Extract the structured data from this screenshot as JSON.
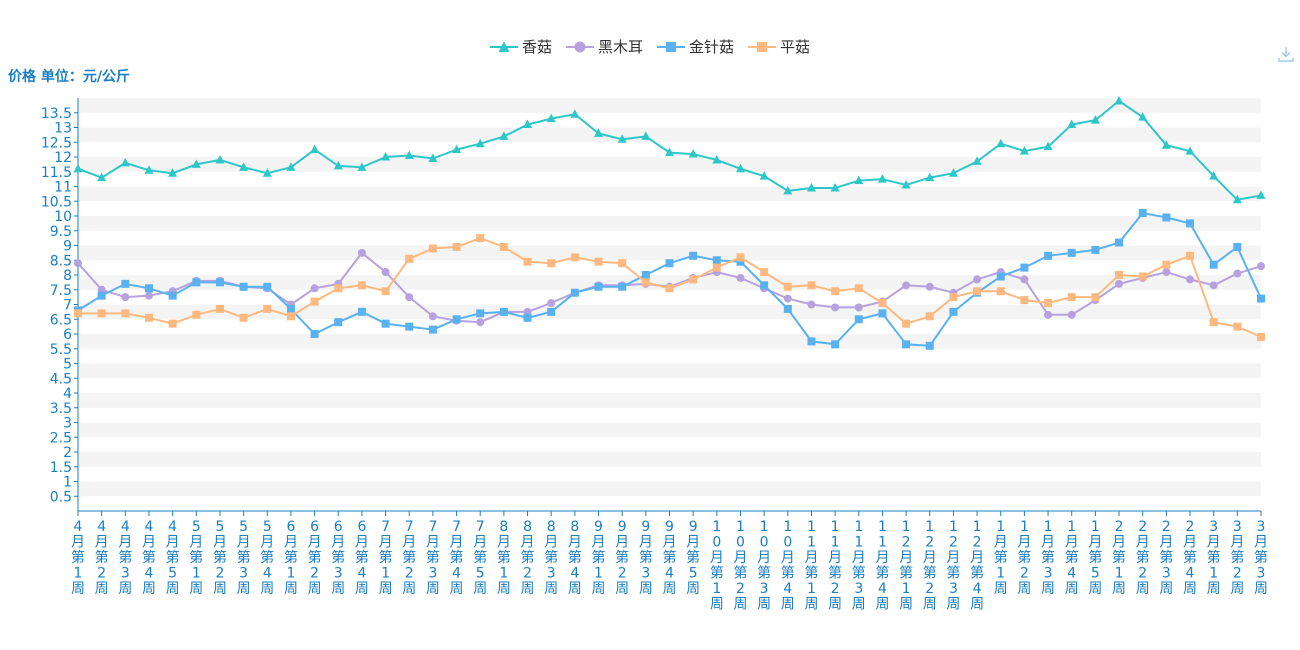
{
  "unit_label": "价格 单位：元/公斤",
  "icons": {
    "download": "download-icon"
  },
  "colors": {
    "axis_text": "#1a7fc4",
    "grid_band": "#f4f4f4",
    "axis_line": "#1a7fc4"
  },
  "chart_data": {
    "type": "line",
    "title": "",
    "ylabel": "价格 单位：元/公斤",
    "ylim": [
      0,
      14
    ],
    "y_ticks": [
      "0.5",
      "1",
      "1.5",
      "2",
      "2.5",
      "3",
      "3.5",
      "4",
      "4.5",
      "5",
      "5.5",
      "6",
      "6.5",
      "7",
      "7.5",
      "8",
      "8.5",
      "9",
      "9.5",
      "10",
      "10.5",
      "11",
      "11.5",
      "12",
      "12.5",
      "13",
      "13.5"
    ],
    "grid": true,
    "legend_position": "top-center",
    "categories": [
      "4月第1周",
      "4月第2周",
      "4月第3周",
      "4月第4周",
      "4月第5周",
      "5月第1周",
      "5月第2周",
      "5月第3周",
      "5月第4周",
      "6月第1周",
      "6月第2周",
      "6月第3周",
      "6月第4周",
      "7月第1周",
      "7月第2周",
      "7月第3周",
      "7月第4周",
      "7月第5周",
      "8月第1周",
      "8月第2周",
      "8月第3周",
      "8月第4周",
      "9月第1周",
      "9月第2周",
      "9月第3周",
      "9月第4周",
      "9月第5周",
      "10月第1周",
      "10月第2周",
      "10月第3周",
      "10月第4周",
      "11月第1周",
      "11月第2周",
      "11月第3周",
      "11月第4周",
      "12月第1周",
      "12月第2周",
      "12月第3周",
      "12月第4周",
      "1月第1周",
      "1月第2周",
      "1月第3周",
      "1月第4周",
      "1月第5周",
      "2月第1周",
      "2月第2周",
      "2月第3周",
      "2月第4周",
      "3月第1周",
      "3月第2周",
      "3月第3周"
    ],
    "series": [
      {
        "name": "香菇",
        "color": "#2ec7c9",
        "marker": "triangle",
        "values": [
          11.6,
          11.3,
          11.8,
          11.55,
          11.45,
          11.75,
          11.9,
          11.65,
          11.45,
          11.65,
          12.25,
          11.7,
          11.65,
          12.0,
          12.05,
          11.95,
          12.25,
          12.45,
          12.7,
          13.1,
          13.3,
          13.45,
          12.8,
          12.6,
          12.7,
          12.15,
          12.1,
          11.9,
          11.6,
          11.35,
          10.85,
          10.95,
          10.95,
          11.2,
          11.25,
          11.05,
          11.3,
          11.45,
          11.85,
          12.45,
          12.2,
          12.35,
          13.1,
          13.25,
          13.9,
          13.35,
          12.4,
          12.2,
          11.35,
          10.55,
          10.7
        ]
      },
      {
        "name": "黑木耳",
        "color": "#b6a2de",
        "marker": "circle",
        "values": [
          8.4,
          7.5,
          7.25,
          7.3,
          7.45,
          7.8,
          7.8,
          7.6,
          7.55,
          7.0,
          7.55,
          7.7,
          8.75,
          8.1,
          7.25,
          6.6,
          6.45,
          6.4,
          6.75,
          6.75,
          7.05,
          7.4,
          7.65,
          7.65,
          7.7,
          7.6,
          7.9,
          8.1,
          7.9,
          7.55,
          7.2,
          7.0,
          6.9,
          6.9,
          7.1,
          7.65,
          7.6,
          7.4,
          7.85,
          8.1,
          7.85,
          6.65,
          6.65,
          7.15,
          7.7,
          7.9,
          8.1,
          7.85,
          7.65,
          8.05,
          8.3
        ]
      },
      {
        "name": "金针菇",
        "color": "#5ab1ef",
        "marker": "rect",
        "values": [
          6.8,
          7.3,
          7.7,
          7.55,
          7.3,
          7.75,
          7.75,
          7.6,
          7.6,
          6.85,
          6.0,
          6.4,
          6.75,
          6.35,
          6.25,
          6.15,
          6.5,
          6.7,
          6.75,
          6.55,
          6.75,
          7.4,
          7.6,
          7.6,
          8.0,
          8.4,
          8.65,
          8.5,
          8.45,
          7.65,
          6.85,
          5.75,
          5.65,
          6.5,
          6.7,
          5.65,
          5.6,
          6.75,
          7.4,
          7.95,
          8.25,
          8.65,
          8.75,
          8.85,
          9.1,
          10.1,
          9.95,
          9.75,
          8.35,
          8.95,
          7.2
        ]
      },
      {
        "name": "平菇",
        "color": "#ffb980",
        "marker": "rect",
        "values": [
          6.7,
          6.7,
          6.7,
          6.55,
          6.35,
          6.65,
          6.85,
          6.55,
          6.85,
          6.6,
          7.1,
          7.55,
          7.65,
          7.45,
          8.55,
          8.9,
          8.95,
          9.25,
          8.95,
          8.45,
          8.4,
          8.6,
          8.45,
          8.4,
          7.75,
          7.55,
          7.85,
          8.25,
          8.6,
          8.1,
          7.6,
          7.65,
          7.45,
          7.55,
          7.05,
          6.35,
          6.6,
          7.25,
          7.45,
          7.45,
          7.15,
          7.05,
          7.25,
          7.25,
          8.0,
          7.95,
          8.35,
          8.65,
          6.4,
          6.25,
          5.9
        ]
      }
    ]
  }
}
